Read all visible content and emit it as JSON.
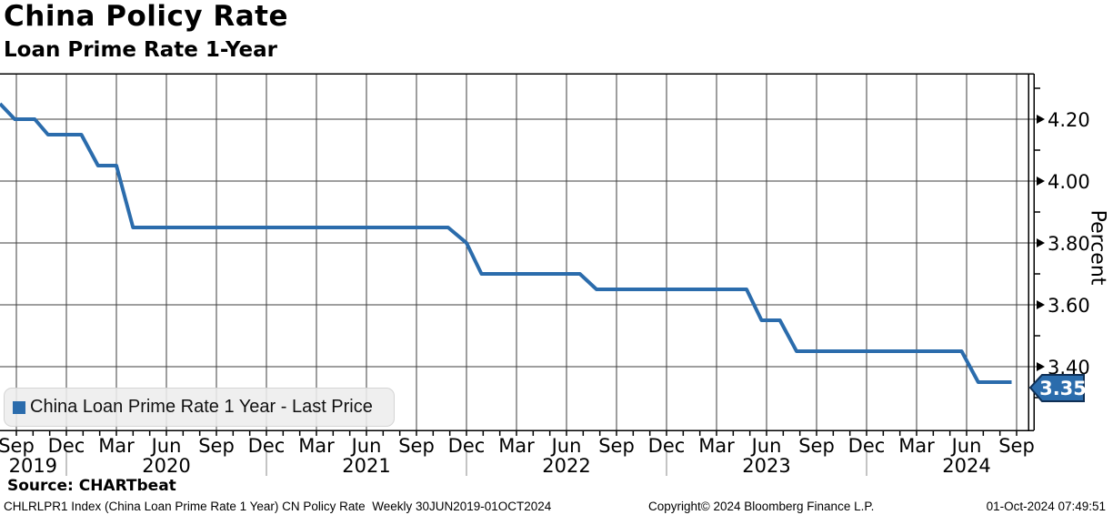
{
  "header": {
    "title": "China Policy Rate",
    "subtitle": "Loan Prime Rate 1-Year"
  },
  "legend": {
    "label": "China Loan Prime Rate 1 Year - Last Price"
  },
  "y_axis": {
    "title": "Percent",
    "major_ticks": [
      "4.20",
      "4.00",
      "3.80",
      "3.60",
      "3.40"
    ],
    "minor_ticks": [
      4.3,
      4.1,
      3.9,
      3.7,
      3.5,
      3.3
    ]
  },
  "x_axis": {
    "month_labels": [
      "Sep",
      "Dec",
      "Mar",
      "Jun",
      "Sep",
      "Dec",
      "Mar",
      "Jun",
      "Sep",
      "Dec",
      "Mar",
      "Jun",
      "Sep",
      "Dec",
      "Mar",
      "Jun",
      "Sep",
      "Dec",
      "Mar",
      "Jun",
      "Sep"
    ],
    "years": [
      {
        "label": "2019",
        "m": 1
      },
      {
        "label": "2020",
        "m": 9
      },
      {
        "label": "2021",
        "m": 21
      },
      {
        "label": "2022",
        "m": 33
      },
      {
        "label": "2023",
        "m": 45
      },
      {
        "label": "2024",
        "m": 57
      }
    ]
  },
  "footer": {
    "source": "Source: CHARTbeat",
    "description": "CHLRLPR1 Index (China Loan Prime Rate 1 Year) CN Policy Rate  Weekly 30JUN2019-01OCT2024",
    "copyright": "Copyright© 2024 Bloomberg Finance L.P.",
    "timestamp": "01-Oct-2024 07:49:51"
  },
  "chart_data": {
    "type": "line",
    "title": "China Policy Rate",
    "subtitle": "Loan Prime Rate 1-Year",
    "ylabel": "Percent",
    "frequency": "Weekly",
    "x_range": [
      "30JUN2019",
      "01OCT2024"
    ],
    "ylim": [
      3.19,
      4.35
    ],
    "y_major_interval": 0.2,
    "y_minor_interval": 0.1,
    "grid": true,
    "legend_position": "bottom-left",
    "last_price": 3.35,
    "last_price_label": "3.35",
    "line_color": "#2b6cac",
    "badge_border_color": "#0e2f55",
    "series": [
      {
        "name": "China Loan Prime Rate 1 Year - Last Price",
        "color": "#2b6cac",
        "rate_changes": [
          [
            "2019-08-20",
            4.25
          ],
          [
            "2019-09-20",
            4.2
          ],
          [
            "2019-11-20",
            4.15
          ],
          [
            "2020-02-20",
            4.05
          ],
          [
            "2020-04-20",
            3.85
          ],
          [
            "2021-12-20",
            3.8
          ],
          [
            "2022-01-20",
            3.7
          ],
          [
            "2022-08-22",
            3.65
          ],
          [
            "2023-06-20",
            3.55
          ],
          [
            "2023-08-21",
            3.45
          ],
          [
            "2024-07-22",
            3.35
          ]
        ],
        "polyline_months_from_sep2019_value": [
          [
            -0.98,
            4.25
          ],
          [
            -0.1,
            4.2
          ],
          [
            1.1,
            4.2
          ],
          [
            1.9,
            4.15
          ],
          [
            3.9,
            4.15
          ],
          [
            4.9,
            4.05
          ],
          [
            6.0,
            4.05
          ],
          [
            7.0,
            3.85
          ],
          [
            25.9,
            3.85
          ],
          [
            27.0,
            3.8
          ],
          [
            27.9,
            3.7
          ],
          [
            33.8,
            3.7
          ],
          [
            34.8,
            3.65
          ],
          [
            43.8,
            3.65
          ],
          [
            44.7,
            3.55
          ],
          [
            45.8,
            3.55
          ],
          [
            46.8,
            3.45
          ],
          [
            56.7,
            3.45
          ],
          [
            57.7,
            3.35
          ],
          [
            59.7,
            3.35
          ]
        ]
      }
    ]
  }
}
